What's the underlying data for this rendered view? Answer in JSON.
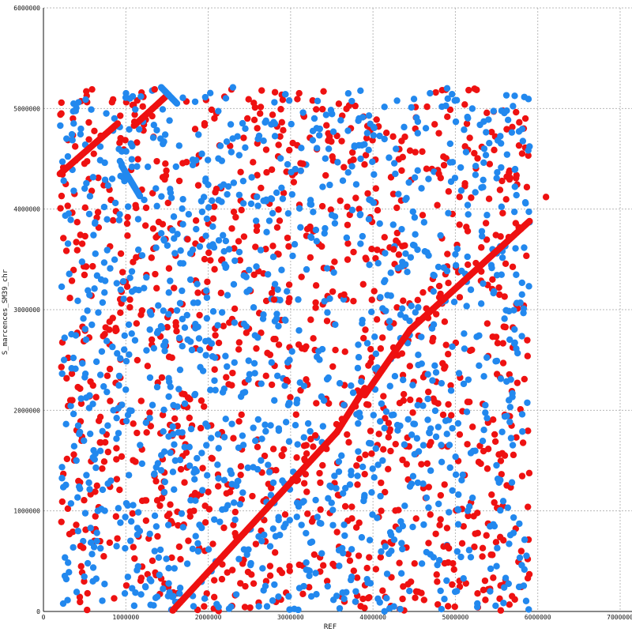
{
  "chart_data": {
    "type": "scatter",
    "xlabel": "REF",
    "ylabel": "S_marcences_SM39_chr",
    "xlim": [
      0,
      7000000
    ],
    "ylim": [
      0,
      6000000
    ],
    "xticks": [
      "0",
      "1000000",
      "2000000",
      "3000000",
      "4000000",
      "5000000",
      "6000000",
      "7000000"
    ],
    "yticks": [
      "0",
      "1000000",
      "2000000",
      "3000000",
      "4000000",
      "5000000",
      "6000000"
    ],
    "grid": true,
    "colors": {
      "forward": "#ee1111",
      "reverse": "#2288ee"
    },
    "series": [
      {
        "color": "#ee1111",
        "diagonal_segments": [
          {
            "x": [
              1570000,
              3560000
            ],
            "y": [
              10000,
              1780000
            ]
          },
          {
            "x": [
              3560000,
              3900000
            ],
            "y": [
              1780000,
              2220000
            ]
          },
          {
            "x": [
              3900000,
              4450000
            ],
            "y": [
              2150000,
              2800000
            ]
          },
          {
            "x": [
              4450000,
              5900000
            ],
            "y": [
              2800000,
              3880000
            ]
          },
          {
            "x": [
              200000,
              900000
            ],
            "y": [
              4350000,
              4850000
            ]
          },
          {
            "x": [
              1100000,
              1500000
            ],
            "y": [
              4830000,
              5130000
            ]
          }
        ],
        "scattered_points": [
          [
            520000,
            5170000
          ],
          [
            1350000,
            5190000
          ],
          [
            3400000,
            5170000
          ],
          [
            5850000,
            4900000
          ],
          [
            6100000,
            4120000
          ],
          [
            220000,
            4130000
          ],
          [
            1650000,
            4280000
          ],
          [
            2100000,
            4200000
          ],
          [
            4950000,
            1950000
          ],
          [
            3800000,
            1450000
          ],
          [
            3300000,
            1750000
          ],
          [
            800000,
            2800000
          ],
          [
            1750000,
            3700000
          ],
          [
            2800000,
            3100000
          ],
          [
            4250000,
            3600000
          ],
          [
            5200000,
            2600000
          ],
          [
            450000,
            650000
          ],
          [
            1200000,
            1100000
          ],
          [
            2450000,
            250000
          ],
          [
            4900000,
            650000
          ],
          [
            5600000,
            1550000
          ],
          [
            3150000,
            4450000
          ],
          [
            4800000,
            4350000
          ],
          [
            1950000,
            50000
          ],
          [
            650000,
            1250000
          ],
          [
            5450000,
            3300000
          ],
          [
            2950000,
            2300000
          ],
          [
            1050000,
            3100000
          ],
          [
            3650000,
            3150000
          ],
          [
            4100000,
            1000000
          ],
          [
            5800000,
            600000
          ],
          [
            350000,
            2100000
          ]
        ]
      },
      {
        "color": "#2288ee",
        "diagonal_segments": [
          {
            "x": [
              950000,
              1170000
            ],
            "y": [
              4430000,
              4130000
            ]
          },
          {
            "x": [
              1430000,
              1620000
            ],
            "y": [
              5210000,
              5050000
            ]
          }
        ],
        "scattered_points": [
          [
            280000,
            4700000
          ],
          [
            1050000,
            5100000
          ],
          [
            2300000,
            5210000
          ],
          [
            3700000,
            5150000
          ],
          [
            4900000,
            5200000
          ],
          [
            5900000,
            3870000
          ],
          [
            5890000,
            20000
          ],
          [
            250000,
            2500000
          ],
          [
            1150000,
            3900000
          ],
          [
            2450000,
            4800000
          ],
          [
            3850000,
            4500000
          ],
          [
            5350000,
            4600000
          ],
          [
            600000,
            300000
          ],
          [
            1600000,
            1500000
          ],
          [
            2650000,
            700000
          ],
          [
            4300000,
            1800000
          ],
          [
            5150000,
            1000000
          ],
          [
            700000,
            3300000
          ],
          [
            1900000,
            2600000
          ],
          [
            3050000,
            3650000
          ],
          [
            4550000,
            2450000
          ],
          [
            5650000,
            2100000
          ],
          [
            3450000,
            250000
          ],
          [
            850000,
            2000000
          ],
          [
            2200000,
            3450000
          ],
          [
            3950000,
            3900000
          ],
          [
            5000000,
            3550000
          ],
          [
            1350000,
            600000
          ],
          [
            2900000,
            1300000
          ],
          [
            4700000,
            1400000
          ],
          [
            5500000,
            450000
          ],
          [
            400000,
            1500000
          ]
        ]
      }
    ]
  }
}
